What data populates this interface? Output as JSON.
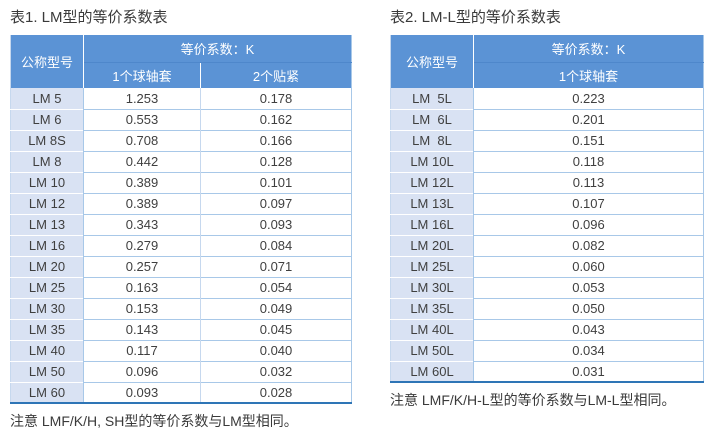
{
  "colors": {
    "header_blue": "#5B93D5",
    "header_line": "#4E87CB",
    "model_col_bg": "#D9E2F3",
    "rule_light": "#A8C8E8",
    "rule_vlight": "#C6D8EE",
    "bottom_border": "#2E75B6",
    "text_dark": "#3F3F3F",
    "header_text": "#FFFFFF"
  },
  "tables": [
    {
      "title": "表1. LM型的等价系数表",
      "header": {
        "model_col": "公称型号",
        "coeff_group": "等价系数：K",
        "sub_cols": [
          "1个球轴套",
          "2个贴紧"
        ]
      },
      "rows": [
        {
          "model": "LM 5",
          "values": [
            "1.253",
            "0.178"
          ]
        },
        {
          "model": "LM 6",
          "values": [
            "0.553",
            "0.162"
          ]
        },
        {
          "model": "LM 8S",
          "values": [
            "0.708",
            "0.166"
          ]
        },
        {
          "model": "LM 8",
          "values": [
            "0.442",
            "0.128"
          ]
        },
        {
          "model": "LM 10",
          "values": [
            "0.389",
            "0.101"
          ]
        },
        {
          "model": "LM 12",
          "values": [
            "0.389",
            "0.097"
          ]
        },
        {
          "model": "LM 13",
          "values": [
            "0.343",
            "0.093"
          ]
        },
        {
          "model": "LM 16",
          "values": [
            "0.279",
            "0.084"
          ]
        },
        {
          "model": "LM 20",
          "values": [
            "0.257",
            "0.071"
          ]
        },
        {
          "model": "LM 25",
          "values": [
            "0.163",
            "0.054"
          ]
        },
        {
          "model": "LM 30",
          "values": [
            "0.153",
            "0.049"
          ]
        },
        {
          "model": "LM 35",
          "values": [
            "0.143",
            "0.045"
          ]
        },
        {
          "model": "LM 40",
          "values": [
            "0.117",
            "0.040"
          ]
        },
        {
          "model": "LM 50",
          "values": [
            "0.096",
            "0.032"
          ]
        },
        {
          "model": "LM 60",
          "values": [
            "0.093",
            "0.028"
          ]
        }
      ],
      "footnote": "注意 LMF/K/H, SH型的等价系数与LM型相同。"
    },
    {
      "title": "表2. LM-L型的等价系数表",
      "header": {
        "model_col": "公称型号",
        "coeff_group": "等价系数：K",
        "sub_cols": [
          "1个球轴套"
        ]
      },
      "rows": [
        {
          "model": "LM  5L",
          "values": [
            "0.223"
          ]
        },
        {
          "model": "LM  6L",
          "values": [
            "0.201"
          ]
        },
        {
          "model": "LM  8L",
          "values": [
            "0.151"
          ]
        },
        {
          "model": "LM 10L",
          "values": [
            "0.118"
          ]
        },
        {
          "model": "LM 12L",
          "values": [
            "0.113"
          ]
        },
        {
          "model": "LM 13L",
          "values": [
            "0.107"
          ]
        },
        {
          "model": "LM 16L",
          "values": [
            "0.096"
          ]
        },
        {
          "model": "LM 20L",
          "values": [
            "0.082"
          ]
        },
        {
          "model": "LM 25L",
          "values": [
            "0.060"
          ]
        },
        {
          "model": "LM 30L",
          "values": [
            "0.053"
          ]
        },
        {
          "model": "LM 35L",
          "values": [
            "0.050"
          ]
        },
        {
          "model": "LM 40L",
          "values": [
            "0.043"
          ]
        },
        {
          "model": "LM 50L",
          "values": [
            "0.034"
          ]
        },
        {
          "model": "LM 60L",
          "values": [
            "0.031"
          ]
        }
      ],
      "footnote": "注意 LMF/K/H-L型的等价系数与LM-L型相同。"
    }
  ]
}
